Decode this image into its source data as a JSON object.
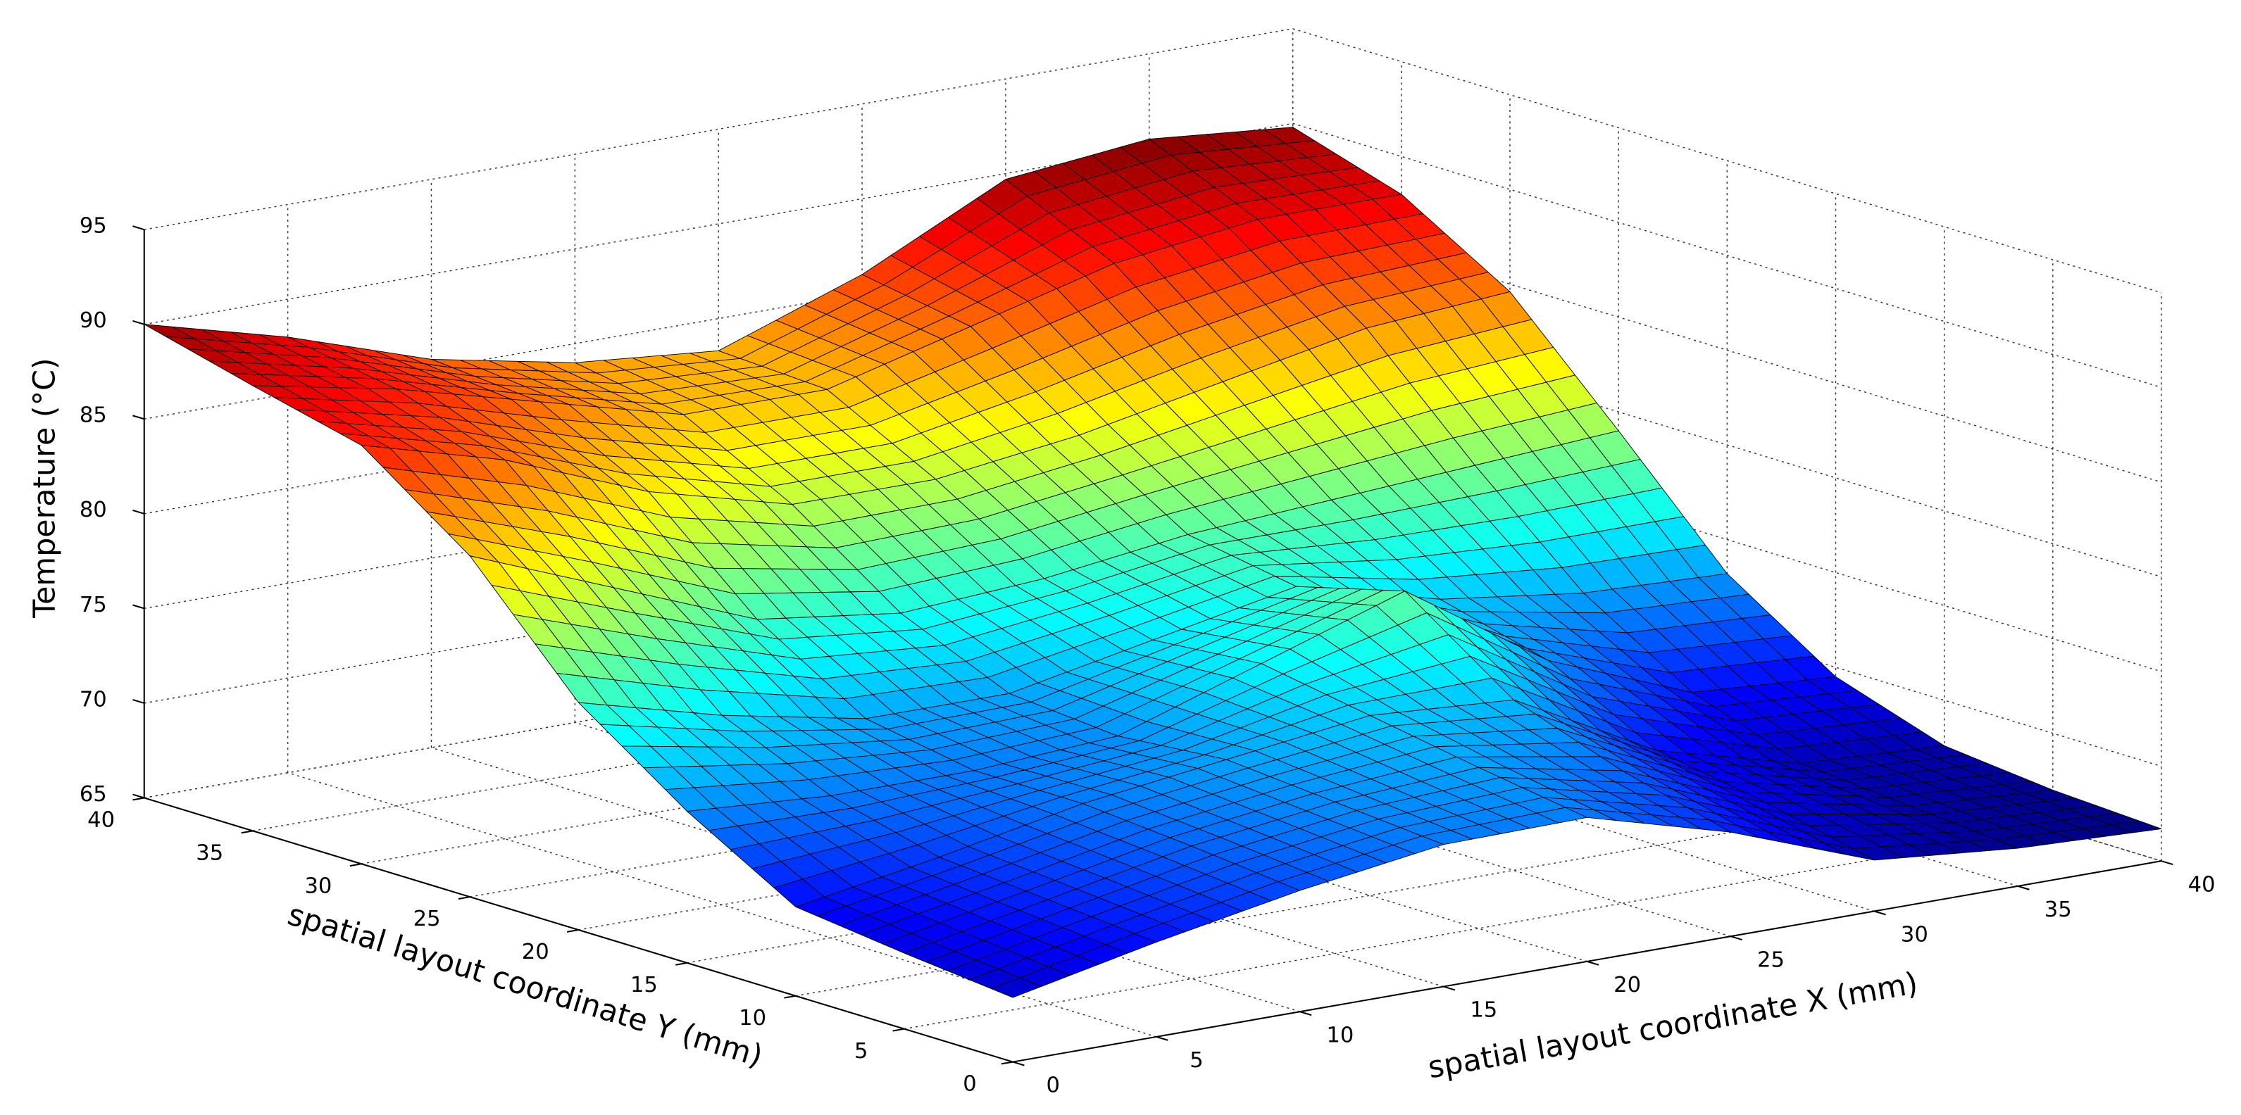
{
  "chart_data": {
    "type": "surface",
    "xlabel": "spatial layout  coordinate X (mm)",
    "ylabel": "spatial layout coordinate Y (mm)",
    "zlabel": "Temperature (°C)",
    "colormap": "jet",
    "grid": true,
    "x": [
      0,
      5,
      10,
      15,
      20,
      25,
      30,
      35,
      40
    ],
    "y": [
      0,
      5,
      10,
      15,
      20,
      25,
      30,
      35,
      40
    ],
    "z": [
      [
        68.4,
        70,
        71.4,
        72.5,
        72.6,
        70.5,
        67.7,
        67,
        66.7
      ],
      [
        69,
        70.5,
        72,
        73,
        73.5,
        72,
        69,
        67.5,
        67
      ],
      [
        69.7,
        71,
        72.5,
        73.5,
        74.5,
        74,
        70,
        68,
        67.6
      ],
      [
        73,
        72.5,
        72.5,
        73,
        75.5,
        78,
        73,
        70,
        69.5
      ],
      [
        77,
        75,
        73.5,
        73.5,
        75,
        76.5,
        74.5,
        73.5,
        73.2
      ],
      [
        83,
        80,
        77,
        76,
        76.5,
        77.5,
        78,
        78.5,
        79
      ],
      [
        87.1,
        85,
        82,
        80,
        80,
        81,
        82.5,
        84,
        84.6
      ],
      [
        88.5,
        87,
        85,
        83,
        83,
        85,
        87,
        88,
        88
      ],
      [
        90,
        88,
        85.5,
        84,
        83.3,
        86,
        89.7,
        90.5,
        89.8
      ]
    ],
    "xlim": [
      0,
      40
    ],
    "ylim": [
      0,
      40
    ],
    "zlim": [
      65,
      95
    ],
    "xticks": [
      0,
      5,
      10,
      15,
      20,
      25,
      30,
      35,
      40
    ],
    "yticks": [
      0,
      5,
      10,
      15,
      20,
      25,
      30,
      35,
      40
    ],
    "zticks": [
      65,
      70,
      75,
      80,
      85,
      90,
      95
    ]
  }
}
